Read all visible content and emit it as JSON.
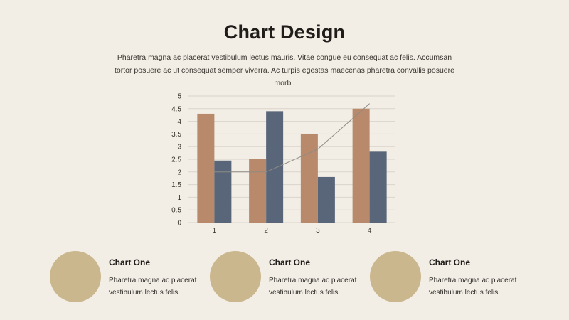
{
  "header": {
    "title": "Chart Design",
    "subtitle": "Pharetra magna ac placerat vestibulum lectus mauris. Vitae congue eu consequat ac felis. Accumsan tortor posuere ac ut consequat semper viverra. Ac turpis egestas maecenas pharetra convallis posuere morbi."
  },
  "chart_data": {
    "type": "bar",
    "categories": [
      "1",
      "2",
      "3",
      "4"
    ],
    "series": [
      {
        "values": [
          4.3,
          2.5,
          3.5,
          4.5
        ],
        "color": "#b8896a",
        "mark": "bar"
      },
      {
        "values": [
          2.45,
          4.4,
          1.8,
          2.8
        ],
        "color": "#596679",
        "mark": "bar"
      },
      {
        "values": [
          2.0,
          2.0,
          2.9,
          4.7
        ],
        "color": "#8f8a84",
        "mark": "line"
      }
    ],
    "title": "",
    "xlabel": "",
    "ylabel": "",
    "ylim": [
      0,
      5
    ],
    "yticks": [
      "0",
      "0.5",
      "1",
      "1.5",
      "2",
      "2.5",
      "3",
      "3.5",
      "4",
      "4.5",
      "5"
    ],
    "grid": true
  },
  "cards": [
    {
      "title": "Chart One",
      "text": "Pharetra magna ac placerat vestibulum lectus felis.",
      "circle_color": "#cbb78d"
    },
    {
      "title": "Chart One",
      "text": "Pharetra magna ac placerat vestibulum lectus felis.",
      "circle_color": "#cbb78d"
    },
    {
      "title": "Chart One",
      "text": "Pharetra magna ac placerat vestibulum lectus felis.",
      "circle_color": "#cbb78d"
    }
  ]
}
